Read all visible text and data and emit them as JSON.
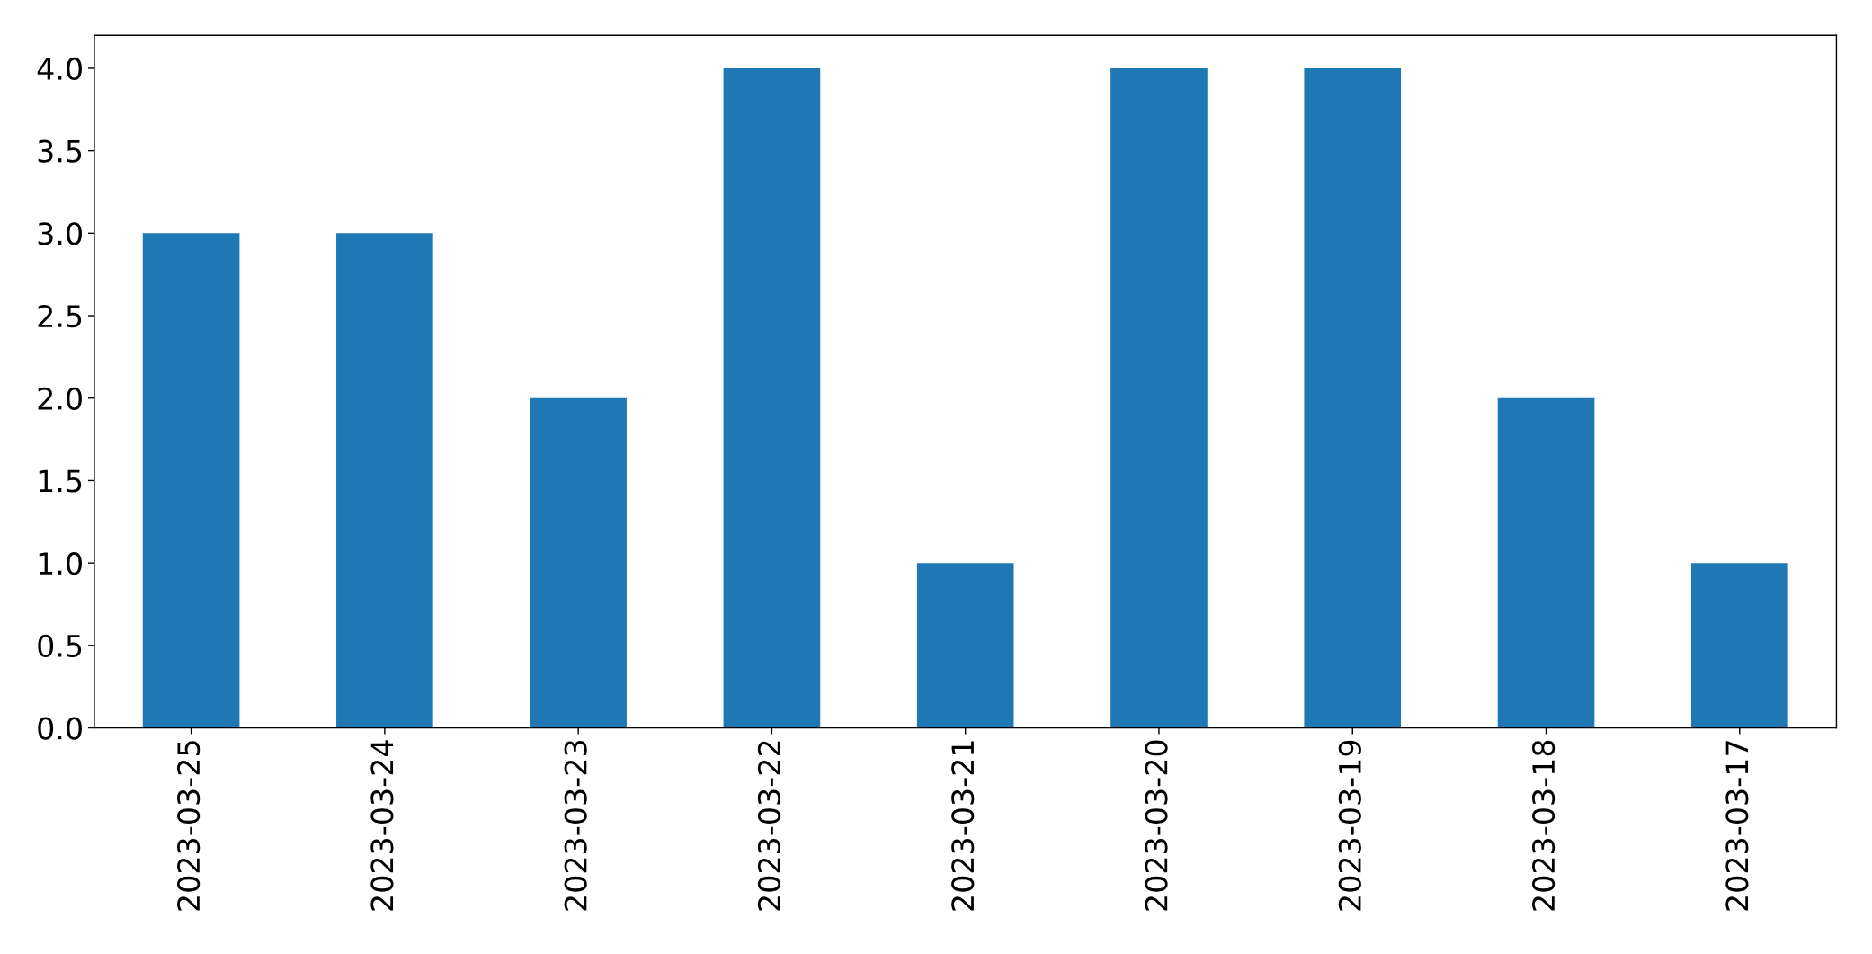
{
  "chart_data": {
    "type": "bar",
    "categories": [
      "2023-03-25",
      "2023-03-24",
      "2023-03-23",
      "2023-03-22",
      "2023-03-21",
      "2023-03-20",
      "2023-03-19",
      "2023-03-18",
      "2023-03-17"
    ],
    "values": [
      3,
      3,
      2,
      4,
      1,
      4,
      4,
      2,
      1
    ],
    "color": "#1f77b4",
    "ylim": [
      0,
      4.2
    ],
    "yticks": [
      {
        "value": 0,
        "label": "0.0"
      },
      0.5,
      {
        "value": 1,
        "label": "1.0"
      },
      1.5,
      {
        "value": 2,
        "label": "2.0"
      },
      2.5,
      {
        "value": 3,
        "label": "3.0"
      },
      3.5,
      {
        "value": 4,
        "label": "4.0"
      }
    ],
    "grid": false,
    "legend": false
  }
}
